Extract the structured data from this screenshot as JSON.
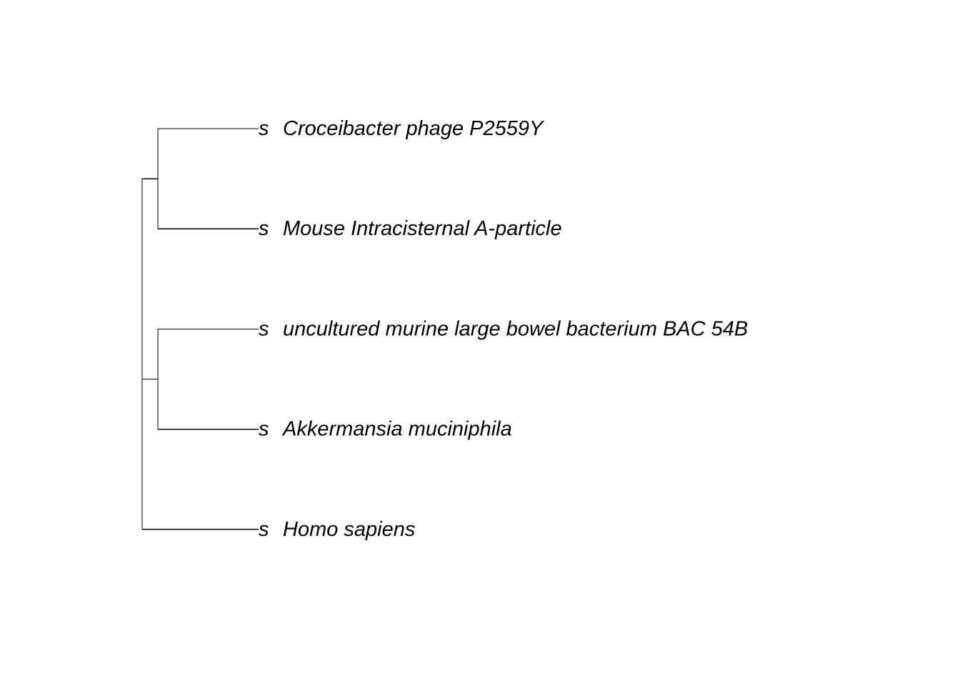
{
  "tree": {
    "type": "dendrogram",
    "orientation": "left-to-right",
    "leaves": [
      {
        "rank": "s",
        "name": "Croceibacter phage P2559Y"
      },
      {
        "rank": "s",
        "name": "Mouse Intracisternal A-particle"
      },
      {
        "rank": "s",
        "name": "uncultured murine large bowel bacterium BAC 54B"
      },
      {
        "rank": "s",
        "name": "Akkermansia muciniphila"
      },
      {
        "rank": "s",
        "name": "Homo sapiens"
      }
    ],
    "topology": {
      "children": [
        {
          "children": [
            {
              "leaf": 0
            },
            {
              "leaf": 1
            }
          ]
        },
        {
          "children": [
            {
              "leaf": 2
            },
            {
              "leaf": 3
            }
          ]
        },
        {
          "leaf": 4
        }
      ]
    },
    "colors": {
      "lines": "#000000",
      "text": "#000000",
      "background": "#ffffff"
    }
  }
}
